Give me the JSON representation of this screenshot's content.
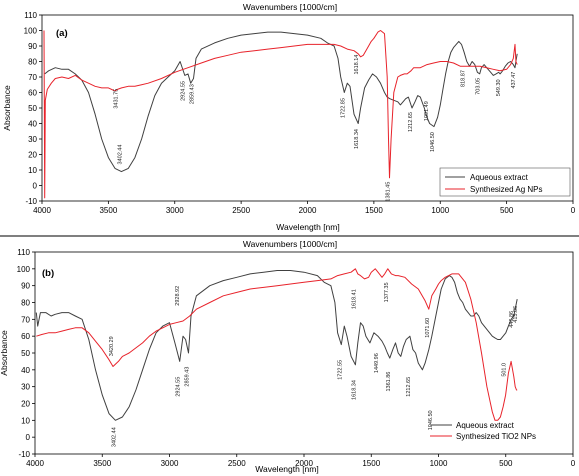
{
  "chart_data": [
    {
      "type": "line",
      "panel_label": "(a)",
      "title": "Wavenumbers [1000/cm]",
      "xlabel": "Wavelength [nm]",
      "ylabel": "Absorbance",
      "xlim": [
        4000,
        0
      ],
      "ylim": [
        -10,
        110
      ],
      "x_ticks": [
        4000,
        3500,
        3000,
        2500,
        2000,
        1500,
        1000,
        500,
        0
      ],
      "y_ticks": [
        -10,
        0,
        10,
        20,
        30,
        40,
        50,
        60,
        70,
        80,
        90,
        100,
        110
      ],
      "legend": [
        "Aqueous extract",
        "Synthesized Ag NPs"
      ],
      "legend_position": "bottom-right",
      "series": [
        {
          "name": "Aqueous extract",
          "color": "#404040",
          "x": [
            3980,
            3950,
            3900,
            3850,
            3800,
            3750,
            3700,
            3650,
            3600,
            3550,
            3500,
            3450,
            3402,
            3350,
            3300,
            3250,
            3200,
            3150,
            3100,
            3050,
            3000,
            2960,
            2924,
            2900,
            2880,
            2859,
            2840,
            2800,
            2700,
            2600,
            2500,
            2400,
            2300,
            2200,
            2100,
            2000,
            1900,
            1850,
            1800,
            1770,
            1750,
            1723,
            1700,
            1680,
            1650,
            1618,
            1600,
            1570,
            1540,
            1510,
            1480,
            1450,
            1420,
            1400,
            1380,
            1350,
            1320,
            1300,
            1260,
            1240,
            1213,
            1190,
            1170,
            1150,
            1120,
            1100,
            1080,
            1047,
            1020,
            1000,
            980,
            960,
            940,
            920,
            900,
            880,
            860,
            840,
            820,
            800,
            780,
            760,
            740,
            720,
            703,
            690,
            670,
            650,
            620,
            600,
            580,
            560,
            549,
            530,
            510,
            490,
            470,
            450,
            437,
            430,
            420
          ],
          "y": [
            72,
            74,
            76,
            75,
            75,
            72,
            68,
            60,
            46,
            30,
            18,
            11,
            9,
            11,
            18,
            30,
            45,
            58,
            66,
            70,
            74,
            80,
            71,
            72,
            66,
            69,
            82,
            88,
            92,
            95,
            97,
            98,
            99,
            99,
            98,
            97,
            95,
            92,
            90,
            82,
            70,
            60,
            66,
            64,
            46,
            40,
            50,
            63,
            68,
            72,
            70,
            66,
            60,
            57,
            56,
            55,
            54,
            52,
            56,
            57,
            50,
            54,
            58,
            57,
            50,
            44,
            40,
            38,
            44,
            52,
            62,
            72,
            80,
            86,
            89,
            91,
            93,
            91,
            86,
            80,
            77,
            80,
            78,
            73,
            72,
            76,
            78,
            76,
            73,
            71,
            72,
            73,
            72,
            74,
            77,
            79,
            80,
            78,
            76,
            80,
            85
          ]
        },
        {
          "name": "Synthesized Ag NPs",
          "color": "#e8232b",
          "x": [
            3985,
            3980,
            3975,
            3960,
            3930,
            3900,
            3850,
            3800,
            3750,
            3700,
            3650,
            3600,
            3550,
            3500,
            3450,
            3432,
            3400,
            3350,
            3300,
            3250,
            3200,
            3100,
            3000,
            2900,
            2800,
            2700,
            2600,
            2500,
            2400,
            2300,
            2200,
            2100,
            2000,
            1900,
            1800,
            1750,
            1700,
            1650,
            1618,
            1600,
            1580,
            1560,
            1540,
            1520,
            1500,
            1470,
            1450,
            1420,
            1400,
            1390,
            1382,
            1370,
            1350,
            1320,
            1300,
            1270,
            1250,
            1220,
            1200,
            1150,
            1100,
            1050,
            1000,
            950,
            900,
            850,
            800,
            750,
            700,
            650,
            600,
            550,
            500,
            470,
            450,
            437,
            430,
            420
          ],
          "y": [
            100,
            -8,
            55,
            62,
            66,
            69,
            70,
            69,
            71,
            68,
            66,
            64,
            63,
            63,
            61,
            62,
            63,
            64,
            64,
            65,
            66,
            69,
            73,
            76,
            79,
            82,
            84,
            86,
            87,
            88,
            89,
            90,
            91,
            91,
            91,
            90,
            88,
            87,
            85,
            83,
            84,
            87,
            90,
            93,
            95,
            99,
            100,
            98,
            70,
            30,
            5,
            30,
            60,
            70,
            71,
            72,
            72,
            74,
            76,
            76,
            78,
            79,
            80,
            80,
            79,
            77,
            77,
            77,
            77,
            76,
            75,
            74,
            75,
            78,
            82,
            91,
            80,
            78
          ]
        }
      ],
      "annotations": [
        {
          "text": "3402.44",
          "x": 3402,
          "y": 20
        },
        {
          "text": "3431.75",
          "x": 3432,
          "y": 56
        },
        {
          "text": "2924.55",
          "x": 2924,
          "y": 61
        },
        {
          "text": "2859.43",
          "x": 2859,
          "y": 59
        },
        {
          "text": "1722.85",
          "x": 1723,
          "y": 50
        },
        {
          "text": "1618.14",
          "x": 1618,
          "y": 78
        },
        {
          "text": "1618.34",
          "x": 1618,
          "y": 30
        },
        {
          "text": "1381.45",
          "x": 1382,
          "y": -4
        },
        {
          "text": "1212.65",
          "x": 1213,
          "y": 41
        },
        {
          "text": "1091.49",
          "x": 1091,
          "y": 48
        },
        {
          "text": "1046.50",
          "x": 1047,
          "y": 28
        },
        {
          "text": "818.87",
          "x": 819,
          "y": 69
        },
        {
          "text": "703.05",
          "x": 703,
          "y": 64
        },
        {
          "text": "549.30",
          "x": 549,
          "y": 63
        },
        {
          "text": "437.47",
          "x": 437,
          "y": 68
        }
      ]
    },
    {
      "type": "line",
      "panel_label": "(b)",
      "title": "Wavenumbers [1000/cm]",
      "xlabel": "Wavelength [nm]",
      "ylabel": "Absorbance",
      "xlim": [
        4000,
        0
      ],
      "ylim": [
        -10,
        110
      ],
      "x_ticks": [
        4000,
        3500,
        3000,
        2500,
        2000,
        1500,
        1000,
        500,
        0
      ],
      "y_ticks": [
        -10,
        0,
        10,
        20,
        30,
        40,
        50,
        60,
        70,
        80,
        90,
        100,
        110
      ],
      "legend": [
        "Aqueous extract",
        "Synthesized TiO2 NPs"
      ],
      "legend_position": "bottom-right",
      "series": [
        {
          "name": "Aqueous extract",
          "color": "#404040",
          "x": [
            3990,
            3980,
            3960,
            3920,
            3880,
            3850,
            3800,
            3750,
            3700,
            3650,
            3600,
            3550,
            3500,
            3450,
            3402,
            3350,
            3300,
            3250,
            3200,
            3150,
            3100,
            3050,
            3000,
            2960,
            2924,
            2900,
            2880,
            2859,
            2840,
            2800,
            2700,
            2600,
            2500,
            2400,
            2300,
            2200,
            2100,
            2000,
            1900,
            1850,
            1800,
            1770,
            1750,
            1723,
            1700,
            1680,
            1650,
            1618,
            1600,
            1580,
            1560,
            1540,
            1510,
            1480,
            1450,
            1420,
            1400,
            1380,
            1362,
            1340,
            1320,
            1300,
            1280,
            1260,
            1240,
            1213,
            1190,
            1170,
            1150,
            1120,
            1100,
            1072,
            1050,
            1020,
            1000,
            980,
            950,
            920,
            900,
            880,
            860,
            840,
            820,
            800,
            780,
            760,
            740,
            720,
            700,
            680,
            660,
            640,
            620,
            600,
            580,
            560,
            540,
            520,
            500,
            480,
            460,
            440,
            430,
            420,
            415
          ],
          "y": [
            74,
            66,
            74,
            74,
            72,
            73,
            74,
            74,
            72,
            70,
            58,
            40,
            25,
            14,
            10,
            12,
            18,
            28,
            40,
            52,
            62,
            66,
            68,
            56,
            45,
            60,
            58,
            50,
            72,
            84,
            90,
            93,
            95,
            97,
            98,
            99,
            99,
            98,
            96,
            92,
            90,
            80,
            62,
            55,
            66,
            60,
            48,
            43,
            56,
            68,
            66,
            60,
            56,
            62,
            60,
            57,
            54,
            50,
            47,
            52,
            56,
            50,
            48,
            54,
            58,
            60,
            52,
            50,
            44,
            40,
            44,
            52,
            60,
            72,
            80,
            88,
            94,
            96,
            95,
            92,
            86,
            82,
            80,
            76,
            74,
            72,
            72,
            74,
            72,
            68,
            66,
            64,
            62,
            60,
            59,
            58,
            58,
            60,
            62,
            66,
            70,
            72,
            76,
            80,
            82
          ]
        },
        {
          "name": "Synthesized TiO2 NPs",
          "color": "#e8232b",
          "x": [
            3990,
            3950,
            3900,
            3850,
            3800,
            3750,
            3700,
            3650,
            3600,
            3550,
            3500,
            3450,
            3420,
            3380,
            3350,
            3300,
            3250,
            3200,
            3150,
            3100,
            3050,
            3000,
            2950,
            2900,
            2850,
            2800,
            2700,
            2600,
            2500,
            2400,
            2300,
            2200,
            2100,
            2000,
            1900,
            1800,
            1750,
            1700,
            1650,
            1618,
            1600,
            1580,
            1550,
            1520,
            1500,
            1470,
            1450,
            1420,
            1400,
            1377,
            1350,
            1320,
            1300,
            1250,
            1200,
            1150,
            1100,
            1072,
            1050,
            1020,
            1000,
            980,
            950,
            900,
            850,
            800,
            760,
            720,
            680,
            640,
            600,
            580,
            560,
            540,
            520,
            501,
            480,
            460,
            440,
            430,
            420,
            415
          ],
          "y": [
            60,
            61,
            62,
            62,
            63,
            64,
            65,
            65,
            62,
            57,
            52,
            46,
            42,
            45,
            48,
            50,
            53,
            56,
            60,
            63,
            65,
            67,
            68,
            69,
            72,
            76,
            80,
            84,
            86,
            88,
            89,
            90,
            91,
            92,
            93,
            94,
            96,
            97,
            98,
            100,
            97,
            96,
            94,
            95,
            98,
            100,
            98,
            95,
            97,
            100,
            97,
            96,
            96,
            95,
            91,
            88,
            81,
            76,
            84,
            88,
            91,
            93,
            95,
            97,
            97,
            92,
            82,
            68,
            50,
            30,
            15,
            10,
            10,
            12,
            18,
            25,
            38,
            45,
            36,
            30,
            28,
            28
          ]
        }
      ],
      "annotations": [
        {
          "text": "3402.44",
          "x": 3402,
          "y": 0
        },
        {
          "text": "3420.29",
          "x": 3420,
          "y": 54
        },
        {
          "text": "2928.92",
          "x": 2929,
          "y": 84
        },
        {
          "text": "2924.55",
          "x": 2924,
          "y": 30
        },
        {
          "text": "2859.43",
          "x": 2859,
          "y": 36
        },
        {
          "text": "1722.55",
          "x": 1723,
          "y": 40
        },
        {
          "text": "1618.41",
          "x": 1618,
          "y": 82
        },
        {
          "text": "1618.34",
          "x": 1618,
          "y": 28
        },
        {
          "text": "1449.96",
          "x": 1450,
          "y": 44
        },
        {
          "text": "1377.35",
          "x": 1377,
          "y": 86
        },
        {
          "text": "1361.86",
          "x": 1362,
          "y": 33
        },
        {
          "text": "1212.65",
          "x": 1213,
          "y": 30
        },
        {
          "text": "1071.60",
          "x": 1072,
          "y": 65
        },
        {
          "text": "1046.50",
          "x": 1047,
          "y": 10
        },
        {
          "text": "501.0",
          "x": 501,
          "y": 40
        },
        {
          "text": "446.86",
          "x": 447,
          "y": 70
        },
        {
          "text": "415.06",
          "x": 415,
          "y": 73
        }
      ]
    }
  ]
}
